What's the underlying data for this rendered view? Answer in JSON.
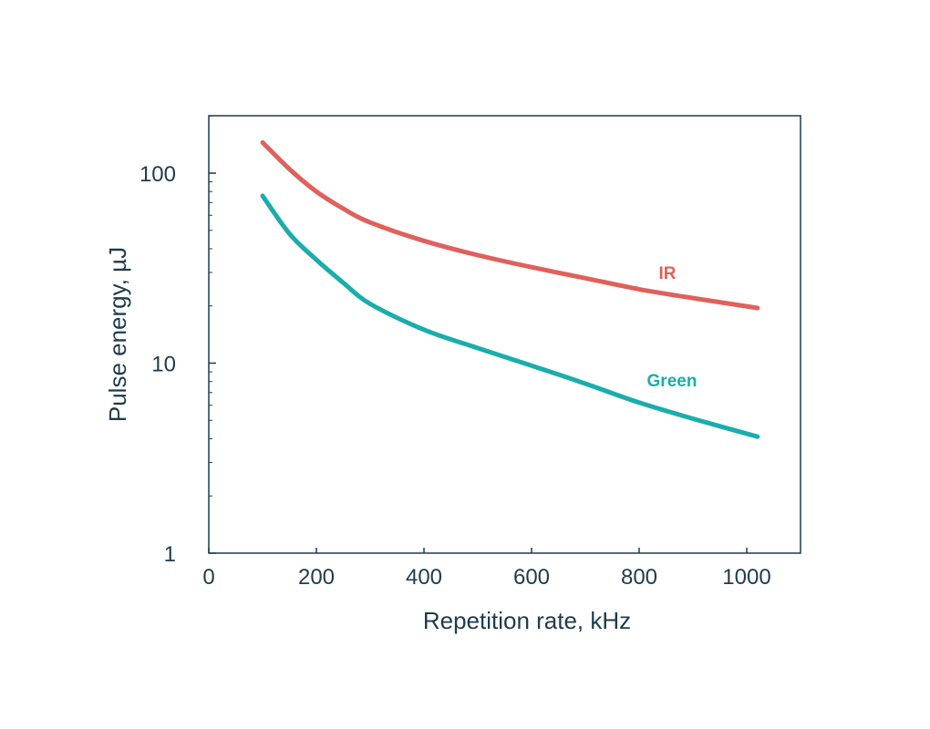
{
  "chart_data": {
    "type": "line",
    "title": "",
    "xlabel": "Repetition rate, kHz",
    "ylabel": "Pulse energy, µJ",
    "xlim": [
      0,
      1100
    ],
    "ylim": [
      1,
      200
    ],
    "y_scale": "log",
    "grid": false,
    "x_ticks": [
      0,
      200,
      400,
      600,
      800,
      1000
    ],
    "x_tick_labels": [
      "0",
      "200",
      "400",
      "600",
      "800",
      "1000"
    ],
    "y_ticks": [
      1,
      10,
      100
    ],
    "y_tick_labels": [
      "1",
      "10",
      "100"
    ],
    "series": [
      {
        "name": "IR",
        "color": "#e0605c",
        "x": [
          100,
          150,
          200,
          250,
          300,
          400,
          500,
          600,
          700,
          800,
          900,
          1020
        ],
        "y": [
          145,
          105,
          80,
          65,
          55,
          44,
          37,
          32,
          28,
          24.5,
          22,
          19.5
        ]
      },
      {
        "name": "Green",
        "color": "#1aadad",
        "x": [
          100,
          150,
          200,
          250,
          300,
          400,
          500,
          600,
          700,
          800,
          900,
          1020
        ],
        "y": [
          76,
          48,
          35,
          26.5,
          20.5,
          15,
          12,
          9.7,
          7.8,
          6.2,
          5.1,
          4.1
        ]
      }
    ]
  }
}
